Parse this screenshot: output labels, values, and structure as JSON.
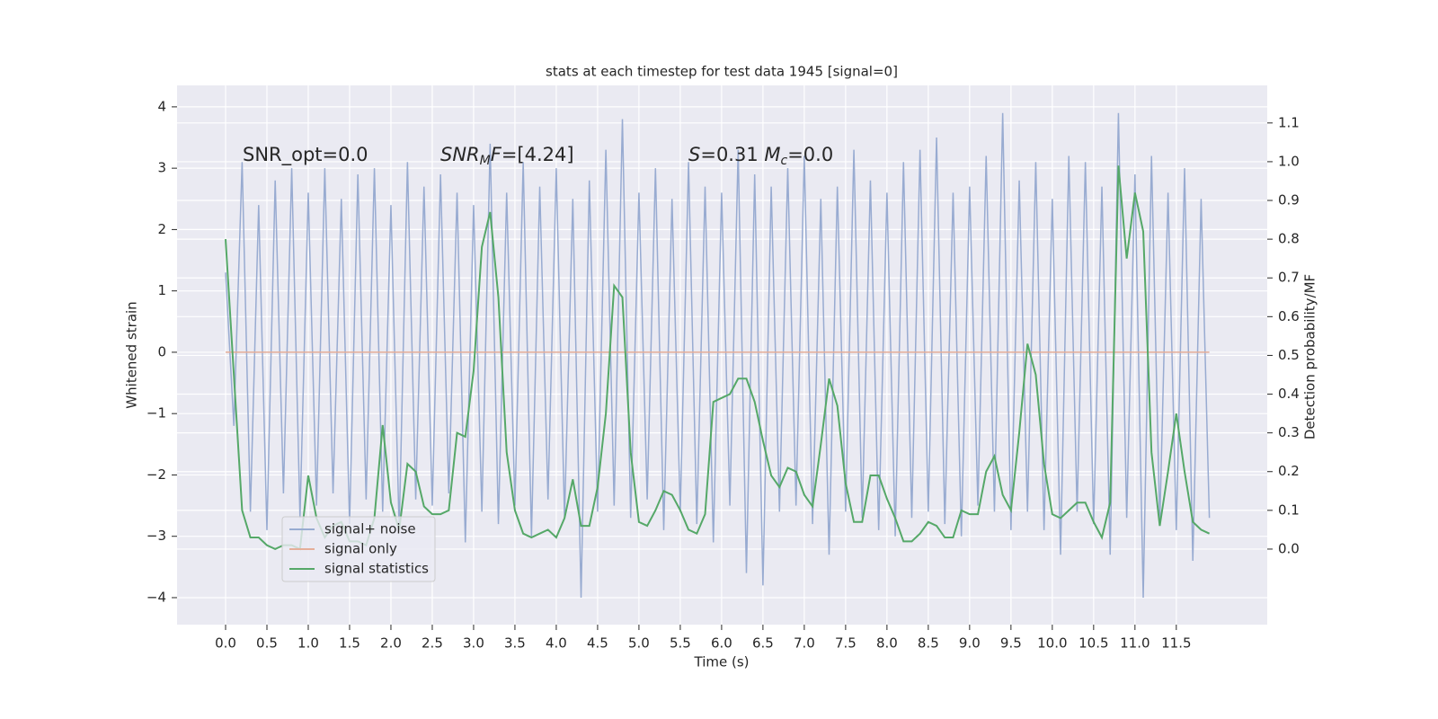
{
  "chart_data": {
    "type": "line",
    "title": "stats at each timestep for test data 1945 [signal=0]",
    "xlabel": "Time (s)",
    "ylabel": "Whitened strain",
    "y2label": "Detection probability/MF",
    "annotations": [
      [
        {
          "text": "SNR_opt=0.0"
        }
      ],
      [
        {
          "text": "SNR",
          "style": "italic"
        },
        {
          "text": "M",
          "style": "sub"
        },
        {
          "text": "F",
          "style": "italic"
        },
        {
          "text": "=[4.24]"
        }
      ],
      [
        {
          "text": "S",
          "style": "italic"
        },
        {
          "text": "=0.31  "
        },
        {
          "text": "M",
          "style": "italic"
        },
        {
          "text": "c",
          "style": "sub"
        },
        {
          "text": "=0.0"
        }
      ]
    ],
    "x": [
      0.0,
      0.1,
      0.2,
      0.3,
      0.4,
      0.5,
      0.6,
      0.7,
      0.8,
      0.9,
      1.0,
      1.1,
      1.2,
      1.3,
      1.4,
      1.5,
      1.6,
      1.7,
      1.8,
      1.9,
      2.0,
      2.1,
      2.2,
      2.3,
      2.4,
      2.5,
      2.6,
      2.7,
      2.8,
      2.9,
      3.0,
      3.1,
      3.2,
      3.3,
      3.4,
      3.5,
      3.6,
      3.7,
      3.8,
      3.9,
      4.0,
      4.1,
      4.2,
      4.3,
      4.4,
      4.5,
      4.6,
      4.7,
      4.8,
      4.9,
      5.0,
      5.1,
      5.2,
      5.3,
      5.4,
      5.5,
      5.6,
      5.7,
      5.8,
      5.9,
      6.0,
      6.1,
      6.2,
      6.3,
      6.4,
      6.5,
      6.6,
      6.7,
      6.8,
      6.9,
      7.0,
      7.1,
      7.2,
      7.3,
      7.4,
      7.5,
      7.6,
      7.7,
      7.8,
      7.9,
      8.0,
      8.1,
      8.2,
      8.3,
      8.4,
      8.5,
      8.6,
      8.7,
      8.8,
      8.9,
      9.0,
      9.1,
      9.2,
      9.3,
      9.4,
      9.5,
      9.6,
      9.7,
      9.8,
      9.9,
      10.0,
      10.1,
      10.2,
      10.3,
      10.4,
      10.5,
      10.6,
      10.7,
      10.8,
      10.9,
      11.0,
      11.1,
      11.2,
      11.3,
      11.4,
      11.5,
      11.6,
      11.7,
      11.8,
      11.9
    ],
    "series": [
      {
        "name": "signal+ noise",
        "color": "#98abd1",
        "axis": "y",
        "values": [
          1.3,
          -1.2,
          3.1,
          -2.6,
          2.4,
          -2.9,
          2.8,
          -2.3,
          3.0,
          -2.7,
          2.6,
          -2.5,
          3.0,
          -2.3,
          2.5,
          -2.8,
          2.9,
          -2.4,
          3.0,
          -2.6,
          2.4,
          -2.9,
          3.1,
          -2.4,
          2.7,
          -2.5,
          2.9,
          -2.3,
          2.6,
          -3.1,
          2.4,
          -2.6,
          3.4,
          -2.8,
          2.6,
          -2.5,
          3.1,
          -3.0,
          2.7,
          -2.4,
          3.0,
          -2.7,
          2.5,
          -4.0,
          2.8,
          -2.6,
          3.3,
          -2.5,
          3.8,
          -2.7,
          2.6,
          -2.4,
          3.0,
          -2.9,
          2.5,
          -2.6,
          3.1,
          -2.8,
          2.7,
          -3.1,
          2.6,
          -2.5,
          3.3,
          -3.6,
          2.9,
          -3.8,
          2.7,
          -2.6,
          3.0,
          -2.5,
          3.2,
          -2.8,
          2.5,
          -3.3,
          2.7,
          -2.6,
          3.3,
          -2.7,
          2.8,
          -2.9,
          2.6,
          -3.0,
          3.1,
          -2.7,
          3.3,
          -2.6,
          3.5,
          -2.8,
          2.6,
          -3.0,
          2.7,
          -2.5,
          3.2,
          -2.6,
          3.9,
          -2.9,
          2.8,
          -2.6,
          3.1,
          -2.9,
          2.5,
          -3.3,
          3.2,
          -2.6,
          3.1,
          -2.8,
          2.7,
          -3.3,
          3.9,
          -2.7,
          2.9,
          -4.0,
          3.2,
          -2.8,
          2.6,
          -2.9,
          3.0,
          -3.4,
          2.5,
          -2.7
        ]
      },
      {
        "name": "signal only",
        "color": "#e5ae99",
        "axis": "y",
        "values": [
          0,
          0,
          0,
          0,
          0,
          0,
          0,
          0,
          0,
          0,
          0,
          0,
          0,
          0,
          0,
          0,
          0,
          0,
          0,
          0,
          0,
          0,
          0,
          0,
          0,
          0,
          0,
          0,
          0,
          0,
          0,
          0,
          0,
          0,
          0,
          0,
          0,
          0,
          0,
          0,
          0,
          0,
          0,
          0,
          0,
          0,
          0,
          0,
          0,
          0,
          0,
          0,
          0,
          0,
          0,
          0,
          0,
          0,
          0,
          0,
          0,
          0,
          0,
          0,
          0,
          0,
          0,
          0,
          0,
          0,
          0,
          0,
          0,
          0,
          0,
          0,
          0,
          0,
          0,
          0,
          0,
          0,
          0,
          0,
          0,
          0,
          0,
          0,
          0,
          0,
          0,
          0,
          0,
          0,
          0,
          0,
          0,
          0,
          0,
          0,
          0,
          0,
          0,
          0,
          0,
          0,
          0,
          0,
          0,
          0,
          0,
          0,
          0,
          0,
          0,
          0,
          0,
          0,
          0,
          0
        ]
      },
      {
        "name": "signal statistics",
        "color": "#55a868",
        "axis": "y2",
        "values": [
          0.8,
          0.45,
          0.1,
          0.03,
          0.03,
          0.01,
          0.0,
          0.01,
          0.01,
          0.0,
          0.19,
          0.08,
          0.03,
          0.06,
          0.07,
          0.02,
          0.02,
          0.01,
          0.08,
          0.32,
          0.12,
          0.05,
          0.22,
          0.2,
          0.11,
          0.09,
          0.09,
          0.1,
          0.3,
          0.29,
          0.46,
          0.78,
          0.87,
          0.65,
          0.25,
          0.1,
          0.04,
          0.03,
          0.04,
          0.05,
          0.03,
          0.08,
          0.18,
          0.06,
          0.06,
          0.16,
          0.35,
          0.68,
          0.65,
          0.25,
          0.07,
          0.06,
          0.1,
          0.15,
          0.14,
          0.1,
          0.05,
          0.04,
          0.09,
          0.38,
          0.39,
          0.4,
          0.44,
          0.44,
          0.38,
          0.28,
          0.19,
          0.16,
          0.21,
          0.2,
          0.14,
          0.11,
          0.27,
          0.44,
          0.37,
          0.17,
          0.07,
          0.07,
          0.19,
          0.19,
          0.13,
          0.08,
          0.02,
          0.02,
          0.04,
          0.07,
          0.06,
          0.03,
          0.03,
          0.1,
          0.09,
          0.09,
          0.2,
          0.24,
          0.14,
          0.1,
          0.3,
          0.53,
          0.45,
          0.22,
          0.09,
          0.08,
          0.1,
          0.12,
          0.12,
          0.07,
          0.03,
          0.12,
          0.99,
          0.75,
          0.92,
          0.82,
          0.25,
          0.06,
          0.2,
          0.35,
          0.2,
          0.07,
          0.05,
          0.04
        ]
      }
    ],
    "xlim": [
      -0.587,
      12.6
    ],
    "xticks": [
      {
        "value": 0.0,
        "label": "0.0"
      },
      0.5,
      {
        "value": 1.0,
        "label": "1.0"
      },
      1.5,
      {
        "value": 2.0,
        "label": "2.0"
      },
      2.5,
      {
        "value": 3.0,
        "label": "3.0"
      },
      3.5,
      {
        "value": 4.0,
        "label": "4.0"
      },
      4.5,
      {
        "value": 5.0,
        "label": "5.0"
      },
      5.5,
      {
        "value": 6.0,
        "label": "6.0"
      },
      6.5,
      {
        "value": 7.0,
        "label": "7.0"
      },
      7.5,
      {
        "value": 8.0,
        "label": "8.0"
      },
      8.5,
      {
        "value": 9.0,
        "label": "9.0"
      },
      9.5,
      {
        "value": 10.0,
        "label": "10.0"
      },
      10.5,
      {
        "value": 11.0,
        "label": "11.0"
      },
      11.5
    ],
    "ylim": [
      -4.44,
      4.35
    ],
    "yticks": [
      {
        "value": -4,
        "label": "−4"
      },
      {
        "value": -3,
        "label": "−3"
      },
      {
        "value": -2,
        "label": "−2"
      },
      {
        "value": -1,
        "label": "−1"
      },
      0,
      1,
      2,
      3,
      4
    ],
    "y2lim": [
      -0.195,
      1.197
    ],
    "y2ticks": [
      {
        "value": 0.0,
        "label": "0.0"
      },
      0.1,
      0.2,
      0.3,
      0.4,
      0.5,
      0.6,
      0.7,
      0.8,
      0.9,
      {
        "value": 1.0,
        "label": "1.0"
      },
      1.1
    ],
    "grid": true,
    "legend": "lower left"
  }
}
